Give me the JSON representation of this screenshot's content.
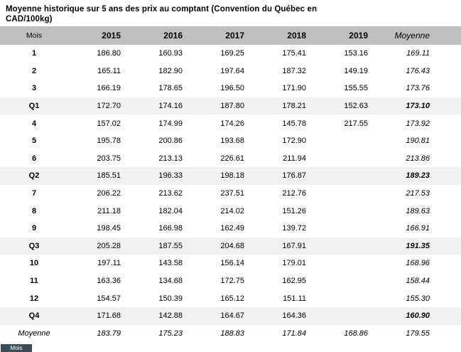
{
  "title": "Moyenne historique sur 5 ans des prix au comptant (Convention du Québec en CAD/100kg)",
  "colors": {
    "header_bg": "#bfbfbf",
    "quarter_row_bg": "#f1f1f1",
    "text": "#000000",
    "next_table_header_bg": "#3d4a57",
    "next_table_header_text": "#ffffff"
  },
  "table": {
    "columns": [
      "Mois",
      "2015",
      "2016",
      "2017",
      "2018",
      "2019",
      "Moyenne"
    ],
    "rows": [
      {
        "type": "month",
        "label": "1",
        "values": [
          "186.80",
          "160.93",
          "169.25",
          "175.41",
          "153.16"
        ],
        "moyenne": "169.11"
      },
      {
        "type": "month",
        "label": "2",
        "values": [
          "165.11",
          "182.90",
          "197.64",
          "187.32",
          "149.19"
        ],
        "moyenne": "176.43"
      },
      {
        "type": "month",
        "label": "3",
        "values": [
          "166.19",
          "178.65",
          "196.50",
          "171.90",
          "155.55"
        ],
        "moyenne": "173.76"
      },
      {
        "type": "quarter",
        "label": "Q1",
        "values": [
          "172.70",
          "174.16",
          "187.80",
          "178.21",
          "152.63"
        ],
        "moyenne": "173.10"
      },
      {
        "type": "month",
        "label": "4",
        "values": [
          "157.02",
          "174.99",
          "174.26",
          "145.78",
          "217.55"
        ],
        "moyenne": "173.92"
      },
      {
        "type": "month",
        "label": "5",
        "values": [
          "195.78",
          "200.86",
          "193.68",
          "172.90",
          ""
        ],
        "moyenne": "190.81"
      },
      {
        "type": "month",
        "label": "6",
        "values": [
          "203.75",
          "213.13",
          "226.61",
          "211.94",
          ""
        ],
        "moyenne": "213.86"
      },
      {
        "type": "quarter",
        "label": "Q2",
        "values": [
          "185.51",
          "196.33",
          "198.18",
          "176.87",
          ""
        ],
        "moyenne": "189.23"
      },
      {
        "type": "month",
        "label": "7",
        "values": [
          "206.22",
          "213.62",
          "237.51",
          "212.76",
          ""
        ],
        "moyenne": "217.53"
      },
      {
        "type": "month",
        "label": "8",
        "values": [
          "211.18",
          "182.04",
          "214.02",
          "151.26",
          ""
        ],
        "moyenne": "189.63"
      },
      {
        "type": "month",
        "label": "9",
        "values": [
          "198.45",
          "166.98",
          "162.49",
          "139.72",
          ""
        ],
        "moyenne": "166.91"
      },
      {
        "type": "quarter",
        "label": "Q3",
        "values": [
          "205.28",
          "187.55",
          "204.68",
          "167.91",
          ""
        ],
        "moyenne": "191.35"
      },
      {
        "type": "month",
        "label": "10",
        "values": [
          "197.11",
          "143.58",
          "156.14",
          "179.01",
          ""
        ],
        "moyenne": "168.96"
      },
      {
        "type": "month",
        "label": "11",
        "values": [
          "163.36",
          "134.68",
          "172.75",
          "162.95",
          ""
        ],
        "moyenne": "158.44"
      },
      {
        "type": "month",
        "label": "12",
        "values": [
          "154.57",
          "150.39",
          "165.12",
          "151.11",
          ""
        ],
        "moyenne": "155.30"
      },
      {
        "type": "quarter",
        "label": "Q4",
        "values": [
          "171.68",
          "142.88",
          "164.67",
          "164.36",
          ""
        ],
        "moyenne": "160.90"
      },
      {
        "type": "footer",
        "label": "Moyenne",
        "values": [
          "183.79",
          "175.23",
          "188.83",
          "171.84",
          "168.86"
        ],
        "moyenne": "179.55"
      }
    ]
  },
  "next_table_fragment": {
    "label": "Mois"
  }
}
